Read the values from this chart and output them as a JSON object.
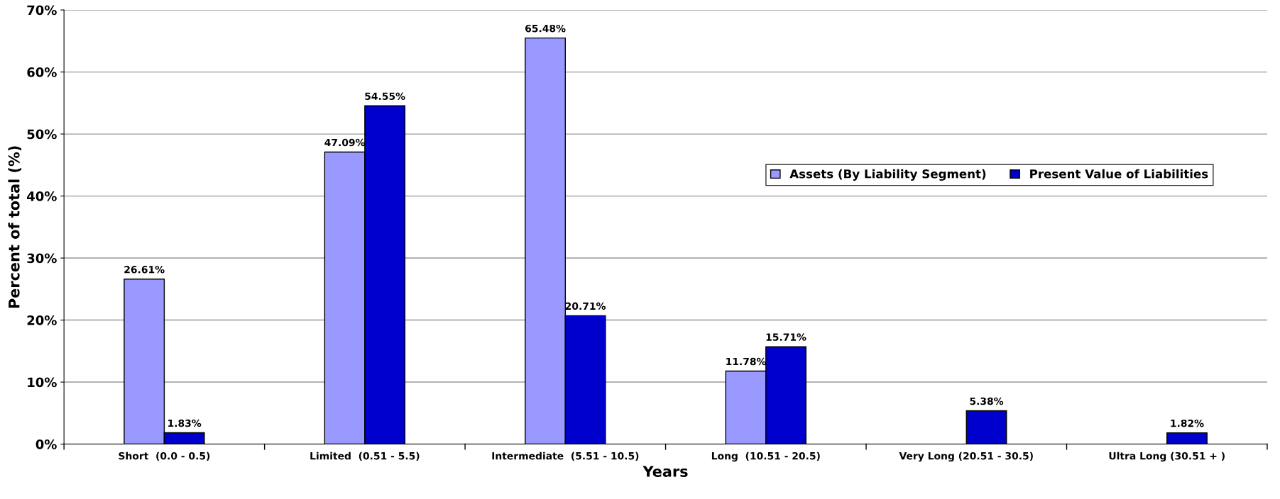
{
  "chart_data": {
    "type": "bar",
    "xlabel": "Years",
    "ylabel": "Percent of total (%)",
    "categories": [
      "Short  (0.0 - 0.5)",
      "Limited  (0.51 - 5.5)",
      "Intermediate  (5.51 - 10.5)",
      "Long  (10.51 - 20.5)",
      "Very Long (20.51 - 30.5)",
      "Ultra Long (30.51 + )"
    ],
    "series": [
      {
        "name": "Assets (By Liability Segment)",
        "color": "#9999ff",
        "values": [
          26.61,
          47.09,
          65.48,
          11.78,
          null,
          null
        ],
        "value_labels": [
          "26.61%",
          "47.09%",
          "65.48%",
          "11.78%",
          null,
          null
        ]
      },
      {
        "name": "Present Value of Liabilities",
        "color": "#0000cc",
        "values": [
          1.83,
          54.55,
          20.71,
          15.71,
          5.38,
          1.82
        ],
        "value_labels": [
          "1.83%",
          "54.55%",
          "20.71%",
          "15.71%",
          "5.38%",
          "1.82%"
        ]
      }
    ],
    "ylim": [
      0,
      70
    ],
    "yticks": [
      {
        "value": 0,
        "label": "0%"
      },
      {
        "value": 10,
        "label": "10%"
      },
      {
        "value": 20,
        "label": "20%"
      },
      {
        "value": 30,
        "label": "30%"
      },
      {
        "value": 40,
        "label": "40%"
      },
      {
        "value": 50,
        "label": "50%"
      },
      {
        "value": 60,
        "label": "60%"
      },
      {
        "value": 70,
        "label": "70%"
      }
    ],
    "grid": "y",
    "legend": "right"
  }
}
